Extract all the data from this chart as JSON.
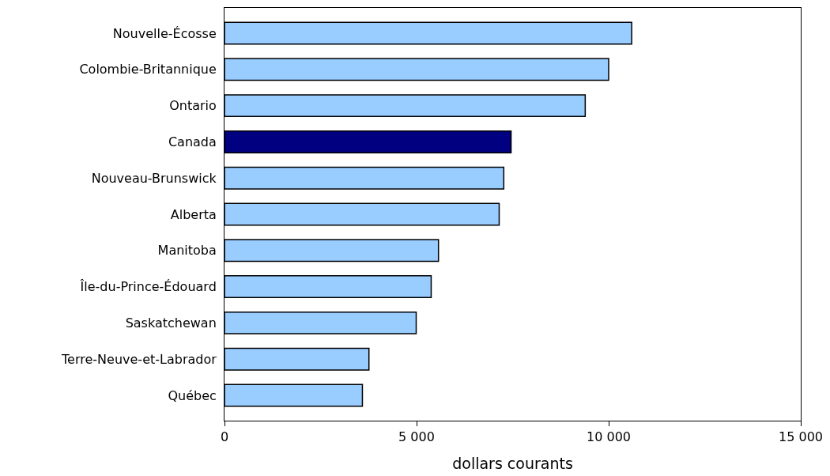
{
  "chart_data": {
    "type": "bar",
    "orientation": "horizontal",
    "xlabel": "dollars courants",
    "categories": [
      "Nouvelle-Écosse",
      "Colombie-Britannique",
      "Ontario",
      "Canada",
      "Nouveau-Brunswick",
      "Alberta",
      "Manitoba",
      "Île-du-Prince-Édouard",
      "Saskatchewan",
      "Terre-Neuve-et-Labrador",
      "Québec"
    ],
    "values": [
      10600,
      10000,
      9390,
      7460,
      7270,
      7150,
      5570,
      5380,
      4990,
      3760,
      3590
    ],
    "colors": [
      "#99ccff",
      "#99ccff",
      "#99ccff",
      "#000080",
      "#99ccff",
      "#99ccff",
      "#99ccff",
      "#99ccff",
      "#99ccff",
      "#99ccff",
      "#99ccff"
    ],
    "xlim": [
      0,
      15000
    ],
    "xticks": [
      0,
      {
        "value": 5000,
        "label": "5 000"
      },
      {
        "value": 10000,
        "label": "10 000"
      },
      {
        "value": 15000,
        "label": "15 000"
      }
    ],
    "grid": false,
    "legend": false
  }
}
